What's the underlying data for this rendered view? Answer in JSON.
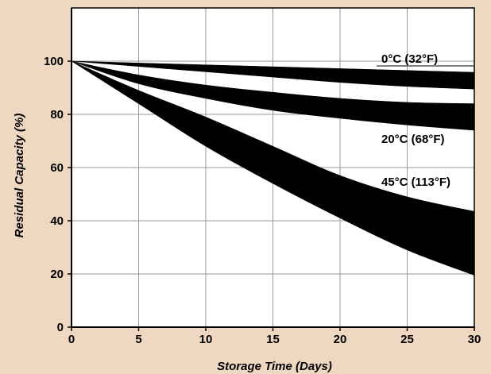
{
  "chart_data": {
    "type": "area",
    "title": "",
    "xlabel": "Storage Time (Days)",
    "ylabel": "Residual Capacity (%)",
    "xlim": [
      0,
      30
    ],
    "ylim": [
      0,
      120
    ],
    "xticks": [
      0,
      5,
      10,
      15,
      20,
      25,
      30
    ],
    "yticks": [
      0,
      20,
      40,
      60,
      80,
      100
    ],
    "grid": true,
    "series": [
      {
        "name": "0°C (32°F)",
        "x": [
          0,
          5,
          10,
          15,
          20,
          25,
          30
        ],
        "upper": [
          100,
          99.3,
          98.6,
          97.9,
          97.2,
          96.5,
          95.8
        ],
        "lower": [
          100,
          98.0,
          96.0,
          94.0,
          92.0,
          90.5,
          89.5
        ]
      },
      {
        "name": "20°C (68°F)",
        "x": [
          0,
          5,
          10,
          15,
          20,
          25,
          30
        ],
        "upper": [
          100,
          94.8,
          91.0,
          88.3,
          86.0,
          84.5,
          84.0
        ],
        "lower": [
          100,
          91.5,
          86.0,
          81.5,
          78.5,
          76.0,
          74.0
        ]
      },
      {
        "name": "45°C (113°F)",
        "x": [
          0,
          5,
          10,
          15,
          20,
          25,
          30
        ],
        "upper": [
          100,
          89.0,
          79.0,
          68.0,
          57.0,
          49.0,
          43.5
        ],
        "lower": [
          100,
          84.0,
          68.0,
          54.0,
          41.0,
          29.0,
          19.5
        ]
      }
    ]
  }
}
